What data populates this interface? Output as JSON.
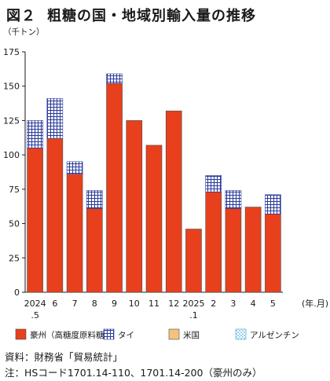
{
  "title": {
    "figure_label": "図２",
    "text": "粗糖の国・地域別輸入量の推移"
  },
  "notes": {
    "source": "資料：財務省「貿易統計」",
    "note": "注：HSコード1701.14-110、1701.14-200（豪州のみ）"
  },
  "chart_data": {
    "type": "bar",
    "stacked": true,
    "y_unit": "（千トン）",
    "x_unit": "(年.月)",
    "ylim": [
      0,
      175
    ],
    "yticks": [
      0,
      25,
      50,
      75,
      100,
      125,
      150,
      175
    ],
    "grid": false,
    "legend_position": "bottom",
    "categories": [
      {
        "label": "2024",
        "sub": ".5"
      },
      {
        "label": "6",
        "sub": ""
      },
      {
        "label": "7",
        "sub": ""
      },
      {
        "label": "8",
        "sub": ""
      },
      {
        "label": "9",
        "sub": ""
      },
      {
        "label": "10",
        "sub": ""
      },
      {
        "label": "11",
        "sub": ""
      },
      {
        "label": "12",
        "sub": ""
      },
      {
        "label": "2025",
        "sub": ".1"
      },
      {
        "label": "2",
        "sub": ""
      },
      {
        "label": "3",
        "sub": ""
      },
      {
        "label": "4",
        "sub": ""
      },
      {
        "label": "5",
        "sub": ""
      }
    ],
    "series": [
      {
        "name": "豪州（高糖度原料糖）",
        "color": "#e8401c",
        "pattern": "solid",
        "values": [
          105,
          112,
          86,
          61,
          152,
          125,
          107,
          132,
          46,
          73,
          61,
          62,
          57
        ]
      },
      {
        "name": "タイ",
        "color": "#2a3a9a",
        "pattern": "grid",
        "values": [
          20,
          29,
          9,
          13,
          7,
          0,
          0,
          0,
          0,
          12,
          13,
          0,
          14
        ]
      },
      {
        "name": "米国",
        "color": "#f6c27a",
        "pattern": "solid",
        "values": [
          0,
          0,
          0,
          0,
          0,
          0,
          0,
          0,
          0,
          0,
          0,
          0,
          0
        ]
      },
      {
        "name": "アルゼンチン",
        "color": "#3aa0d8",
        "pattern": "dots",
        "values": [
          0,
          0,
          0,
          0,
          0,
          0,
          0,
          0,
          0,
          0,
          0,
          0,
          0
        ]
      }
    ]
  }
}
